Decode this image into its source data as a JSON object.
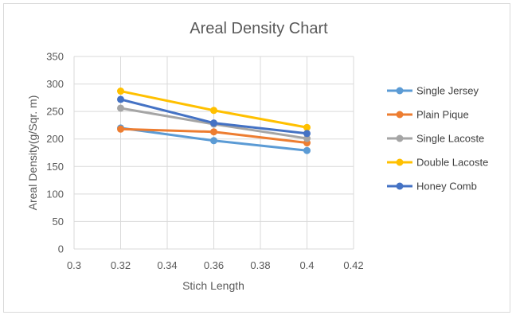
{
  "chart_data": {
    "type": "line",
    "title": "Areal Density Chart",
    "xlabel": "Stich Length",
    "ylabel": "Areal Density(g/Sqr. m)",
    "xlim": [
      0.3,
      0.42
    ],
    "ylim": [
      0,
      350
    ],
    "xticks": [
      "0.3",
      "0.32",
      "0.34",
      "0.36",
      "0.38",
      "0.4",
      "0.42"
    ],
    "yticks": [
      "0",
      "50",
      "100",
      "150",
      "200",
      "250",
      "300",
      "350"
    ],
    "grid": true,
    "legend": "right",
    "x": [
      0.32,
      0.36,
      0.4
    ],
    "series": [
      {
        "name": "Single Jersey",
        "color": "#5B9BD5",
        "values": [
          220,
          197,
          179
        ]
      },
      {
        "name": "Plain Pique",
        "color": "#ED7D31",
        "values": [
          218,
          213,
          193
        ]
      },
      {
        "name": "Single Lacoste",
        "color": "#A5A5A5",
        "values": [
          256,
          227,
          201
        ]
      },
      {
        "name": "Double Lacoste",
        "color": "#FFC000",
        "values": [
          287,
          252,
          221
        ]
      },
      {
        "name": "Honey Comb",
        "color": "#4472C4",
        "values": [
          272,
          229,
          210
        ]
      }
    ]
  }
}
